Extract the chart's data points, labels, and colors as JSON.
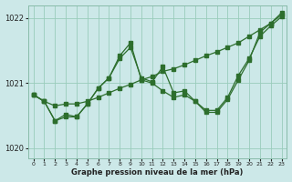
{
  "title": "Graphe pression niveau de la mer (hPa)",
  "bg_color": "#cce8e8",
  "grid_color": "#99ccbb",
  "line_color": "#2d6e2d",
  "ylim": [
    1019.85,
    1022.2
  ],
  "xlim": [
    -0.5,
    23.5
  ],
  "yticks": [
    1020,
    1021,
    1022
  ],
  "xtick_labels": [
    "0",
    "1",
    "2",
    "3",
    "4",
    "5",
    "6",
    "7",
    "8",
    "9",
    "10",
    "11",
    "12",
    "13",
    "14",
    "15",
    "16",
    "17",
    "18",
    "19",
    "20",
    "21",
    "22",
    "23"
  ],
  "series1_x": [
    0,
    1,
    2,
    3,
    4,
    5,
    6,
    7,
    8,
    9,
    10,
    11,
    12,
    13,
    14,
    15,
    16,
    17,
    18,
    19,
    20,
    21,
    22,
    23
  ],
  "series1_y": [
    1020.82,
    1020.72,
    1020.65,
    1020.68,
    1020.68,
    1020.72,
    1020.78,
    1020.85,
    1020.92,
    1020.98,
    1021.05,
    1021.1,
    1021.18,
    1021.22,
    1021.28,
    1021.35,
    1021.42,
    1021.48,
    1021.55,
    1021.62,
    1021.72,
    1021.82,
    1021.92,
    1022.05
  ],
  "series2_x": [
    0,
    1,
    2,
    3,
    4,
    5,
    6,
    7,
    8,
    9,
    10,
    11,
    12,
    13,
    14,
    15,
    16,
    17,
    18,
    19,
    20,
    21,
    22,
    23
  ],
  "series2_y": [
    1020.82,
    1020.72,
    1020.42,
    1020.52,
    1020.48,
    1020.68,
    1020.92,
    1021.08,
    1021.42,
    1021.62,
    1021.05,
    1021.0,
    1020.88,
    1020.78,
    1020.82,
    1020.72,
    1020.55,
    1020.55,
    1020.75,
    1021.05,
    1021.35,
    1021.78,
    1021.92,
    1022.08
  ],
  "series3_x": [
    0,
    1,
    2,
    3,
    4,
    5,
    6,
    7,
    8,
    9,
    10,
    11,
    12,
    13,
    14,
    15,
    16,
    17,
    18,
    19,
    20,
    21,
    22,
    23
  ],
  "series3_y": [
    1020.82,
    1020.72,
    1020.42,
    1020.48,
    1020.48,
    1020.68,
    1020.92,
    1021.08,
    1021.38,
    1021.55,
    1021.08,
    1021.02,
    1021.25,
    1020.85,
    1020.88,
    1020.72,
    1020.58,
    1020.58,
    1020.78,
    1021.12,
    1021.38,
    1021.72,
    1021.88,
    1022.02
  ]
}
